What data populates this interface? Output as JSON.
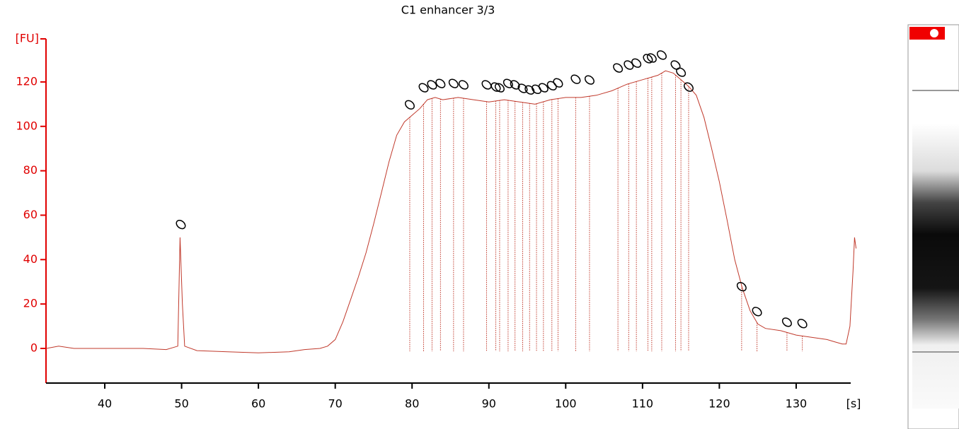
{
  "chart_data": {
    "type": "line",
    "title": "C1 enhancer 3/3",
    "ylabel": "[FU]",
    "xlabel": "[s]",
    "color": "#c0392b",
    "axis_color": "#e00000",
    "xlim": [
      32.35,
      137.1
    ],
    "ylim": [
      -15.6,
      139.4
    ],
    "xticks": [
      40,
      50,
      60,
      70,
      80,
      90,
      100,
      110,
      120,
      130
    ],
    "yticks": [
      0,
      20,
      40,
      60,
      80,
      100,
      120
    ],
    "x": [
      32.4,
      34,
      36,
      40,
      45,
      48,
      49.5,
      49.8,
      50.1,
      50.4,
      52,
      56,
      60,
      64,
      66,
      68,
      69,
      70,
      71,
      72,
      73,
      74,
      75,
      76,
      77,
      78,
      79,
      80,
      81,
      82,
      83,
      84,
      86,
      88,
      90,
      92,
      94,
      96,
      98,
      100,
      102,
      104,
      106,
      108,
      110,
      112,
      113,
      114,
      115,
      116,
      117,
      118,
      119,
      120,
      121,
      122,
      123,
      124,
      125,
      126,
      128,
      130,
      132,
      134,
      135,
      136,
      136.5,
      137,
      137.4,
      137.6,
      137.8
    ],
    "values": [
      0,
      1,
      0,
      0,
      0,
      -0.5,
      1,
      50,
      20,
      1,
      -1,
      -1.5,
      -2,
      -1.5,
      -0.5,
      0,
      1,
      4,
      12,
      22,
      32,
      43,
      56,
      70,
      84,
      96,
      102,
      105,
      108,
      112,
      113,
      112,
      113,
      112,
      111,
      112,
      111,
      110,
      112,
      113,
      113,
      114,
      116,
      119,
      121,
      123,
      125,
      124,
      121,
      118,
      114,
      104,
      90,
      75,
      58,
      40,
      27,
      17,
      11,
      9,
      8,
      6,
      5,
      4,
      3,
      2,
      2,
      10,
      35,
      50,
      45
    ],
    "peaks": {
      "x": [
        49.9,
        79.7,
        81.5,
        82.6,
        83.7,
        85.4,
        86.7,
        89.7,
        90.9,
        91.4,
        92.5,
        93.4,
        94.4,
        95.3,
        96.2,
        97.1,
        98.2,
        99.0,
        101.3,
        103.1,
        106.8,
        108.2,
        109.2,
        110.7,
        111.2,
        112.5,
        114.3,
        115.0,
        116.0,
        122.9,
        124.9,
        128.8,
        130.8
      ],
      "y": [
        55.8,
        109.7,
        117.4,
        118.7,
        119.3,
        119.3,
        118.7,
        118.7,
        117.7,
        117.4,
        119.3,
        118.7,
        117.1,
        116.4,
        116.7,
        117.4,
        118.3,
        119.6,
        121.2,
        120.9,
        126.3,
        127.6,
        128.5,
        130.5,
        130.8,
        132.1,
        127.6,
        124.4,
        117.7,
        27.8,
        16.6,
        11.8,
        11.2
      ]
    }
  }
}
